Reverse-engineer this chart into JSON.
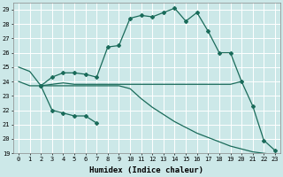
{
  "xlabel": "Humidex (Indice chaleur)",
  "bg_color": "#cce8e8",
  "grid_color": "#ffffff",
  "line_color": "#1a6b5a",
  "xlim": [
    -0.5,
    23.5
  ],
  "ylim": [
    19,
    29.5
  ],
  "yticks": [
    19,
    20,
    21,
    22,
    23,
    24,
    25,
    26,
    27,
    28,
    29
  ],
  "xticks": [
    0,
    1,
    2,
    3,
    4,
    5,
    6,
    7,
    8,
    9,
    10,
    11,
    12,
    13,
    14,
    15,
    16,
    17,
    18,
    19,
    20,
    21,
    22,
    23
  ],
  "line1": {
    "x": [
      0,
      1,
      2,
      3,
      4,
      5,
      6,
      7,
      8,
      9,
      10,
      11,
      12,
      13,
      14,
      15,
      16,
      17,
      18,
      19,
      20
    ],
    "y": [
      25.0,
      24.7,
      23.7,
      23.8,
      23.9,
      23.8,
      23.8,
      23.8,
      23.8,
      23.8,
      23.8,
      23.8,
      23.8,
      23.8,
      23.8,
      23.8,
      23.8,
      23.8,
      23.8,
      23.8,
      24.0
    ],
    "marker": false
  },
  "line2": {
    "x": [
      2,
      3,
      4,
      5,
      6,
      7
    ],
    "y": [
      23.7,
      22.0,
      21.8,
      21.6,
      21.6,
      21.1
    ],
    "marker": true
  },
  "line3": {
    "x": [
      2,
      3,
      4,
      5,
      6,
      7,
      8,
      9,
      10,
      11,
      12,
      13,
      14,
      15,
      16,
      17,
      18,
      19,
      20,
      21,
      22,
      23
    ],
    "y": [
      23.7,
      24.3,
      24.6,
      24.6,
      24.5,
      24.3,
      26.4,
      26.5,
      28.4,
      28.6,
      28.5,
      28.8,
      29.1,
      28.2,
      28.8,
      27.5,
      26.0,
      26.0,
      24.0,
      22.3,
      19.9,
      19.2
    ],
    "marker": true
  },
  "line4": {
    "x": [
      0,
      1,
      2,
      3,
      4,
      5,
      6,
      7,
      8,
      9,
      10,
      11,
      12,
      13,
      14,
      15,
      16,
      17,
      18,
      19,
      20,
      21,
      22,
      23
    ],
    "y": [
      24.0,
      23.7,
      23.7,
      23.7,
      23.7,
      23.7,
      23.7,
      23.7,
      23.7,
      23.7,
      23.5,
      22.8,
      22.2,
      21.7,
      21.2,
      20.8,
      20.4,
      20.1,
      19.8,
      19.5,
      19.3,
      19.1,
      19.0,
      18.9
    ],
    "marker": false
  }
}
